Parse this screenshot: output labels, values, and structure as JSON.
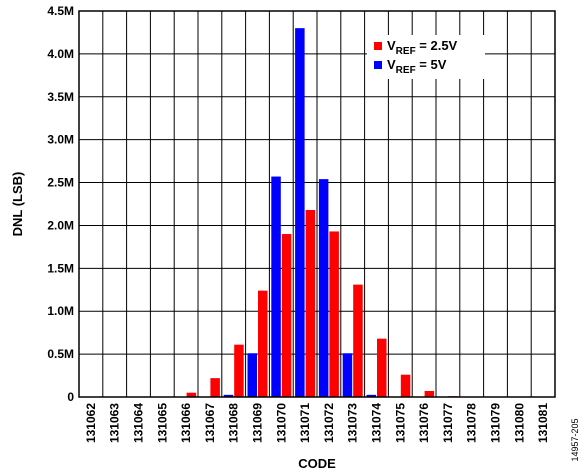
{
  "chart_data": {
    "type": "bar",
    "categories": [
      "131062",
      "131063",
      "131064",
      "131065",
      "131066",
      "131067",
      "131068",
      "131069",
      "131070",
      "131071",
      "131072",
      "131073",
      "131074",
      "131075",
      "131076",
      "131077",
      "131078",
      "131079",
      "131080",
      "131081"
    ],
    "series": [
      {
        "name": "V_REF = 2.5V",
        "color": "#ff0000",
        "values": [
          0,
          0,
          0,
          0.005,
          0.05,
          0.22,
          0.61,
          1.24,
          1.9,
          2.18,
          1.93,
          1.31,
          0.68,
          0.26,
          0.07,
          0.01,
          0,
          0,
          0,
          0
        ]
      },
      {
        "name": "V_REF = 5V",
        "color": "#0000ff",
        "values": [
          0,
          0,
          0,
          0,
          0,
          0,
          0.025,
          0.51,
          2.57,
          4.3,
          2.54,
          0.51,
          0.025,
          0,
          0,
          0,
          0,
          0,
          0,
          0
        ]
      }
    ],
    "xlabel": "CODE",
    "ylabel": "DNL (LSB)",
    "ylim": [
      0,
      4.5
    ],
    "yticks": [
      0,
      0.5,
      1.0,
      1.5,
      2.0,
      2.5,
      3.0,
      3.5,
      4.0,
      4.5
    ],
    "ytick_labels": [
      "0",
      "0.5M",
      "1.0M",
      "1.5M",
      "2.0M",
      "2.5M",
      "3.0M",
      "3.5M",
      "4.0M",
      "4.5M"
    ],
    "grid": true,
    "legend_position": "top-right",
    "legend": [
      {
        "main": "V",
        "sub": "REF",
        "rest": " = 2.5V",
        "color": "#ff0000"
      },
      {
        "main": "V",
        "sub": "REF",
        "rest": " = 5V",
        "color": "#0000ff"
      }
    ],
    "figure_id": "14957-205"
  }
}
